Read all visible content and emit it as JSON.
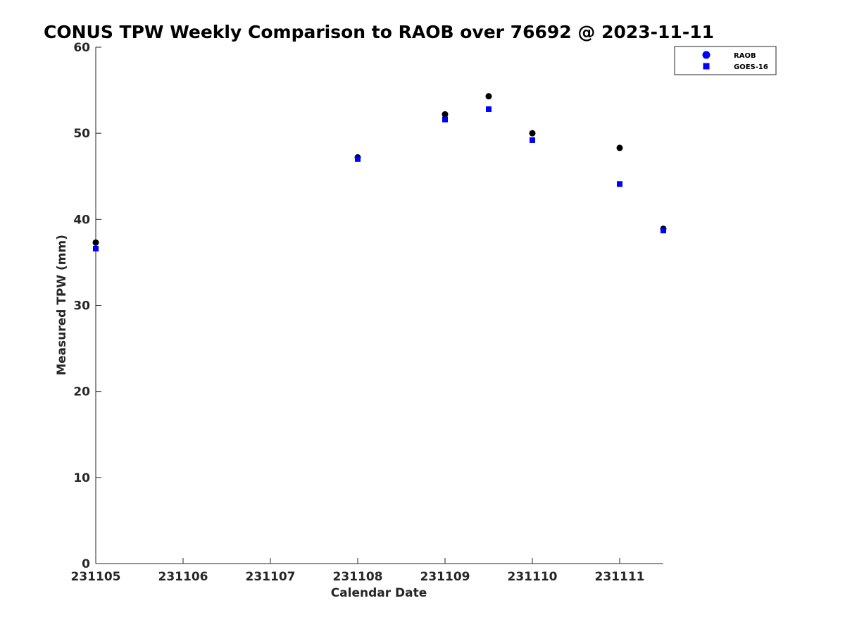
{
  "chart_data": {
    "type": "scatter",
    "title": "CONUS TPW Weekly Comparison to RAOB over 76692 @ 2023-11-11",
    "xlabel": "Calendar Date",
    "ylabel": "Measured TPW (mm)",
    "x_ticks": [
      {
        "value": 0,
        "label": "231105"
      },
      {
        "value": 1,
        "label": "231106"
      },
      {
        "value": 2,
        "label": "231107"
      },
      {
        "value": 3,
        "label": "231108"
      },
      {
        "value": 4,
        "label": "231109"
      },
      {
        "value": 5,
        "label": "231110"
      },
      {
        "value": 6,
        "label": "231111"
      }
    ],
    "xlim": [
      0,
      6.5
    ],
    "ylim": [
      0,
      60
    ],
    "y_ticks": [
      0,
      10,
      20,
      30,
      40,
      50,
      60
    ],
    "grid": false,
    "legend_position": "top-right",
    "series": [
      {
        "name": "RAOB",
        "marker": "circle",
        "color": "#000000",
        "legend_color": "#0000ff",
        "points": [
          {
            "x": 0,
            "y": 37.3
          },
          {
            "x": 3,
            "y": 47.2
          },
          {
            "x": 4,
            "y": 52.2
          },
          {
            "x": 4.5,
            "y": 54.3
          },
          {
            "x": 5,
            "y": 50.0
          },
          {
            "x": 6,
            "y": 48.3
          },
          {
            "x": 6.5,
            "y": 38.9
          }
        ]
      },
      {
        "name": "GOES-16",
        "marker": "square",
        "color": "#0000ff",
        "legend_color": "#0000ff",
        "points": [
          {
            "x": 0,
            "y": 36.6
          },
          {
            "x": 3,
            "y": 47.0
          },
          {
            "x": 4,
            "y": 51.6
          },
          {
            "x": 4.5,
            "y": 52.8
          },
          {
            "x": 5,
            "y": 49.2
          },
          {
            "x": 6,
            "y": 44.1
          },
          {
            "x": 6.5,
            "y": 38.7
          }
        ]
      }
    ]
  }
}
